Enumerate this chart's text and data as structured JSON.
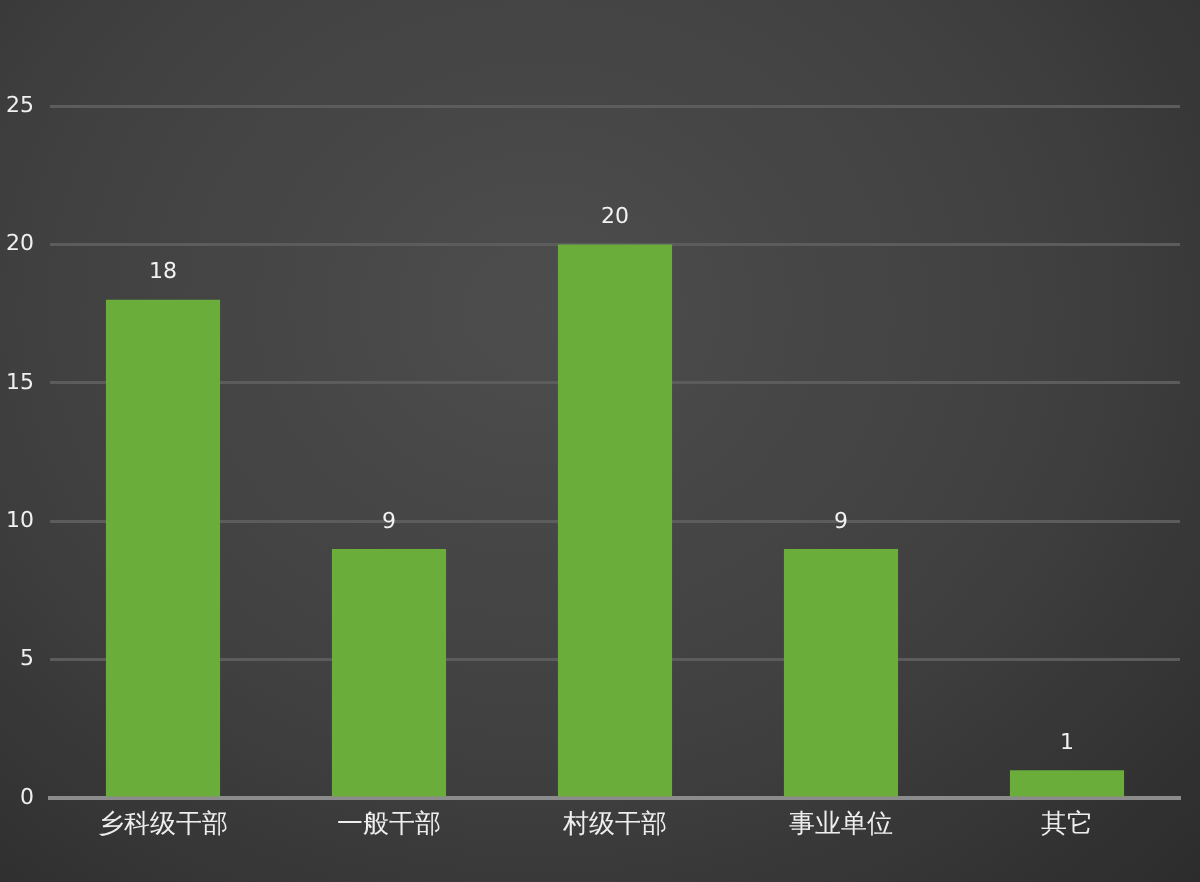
{
  "chart_data": {
    "type": "bar",
    "categories": [
      "乡科级干部",
      "一般干部",
      "村级干部",
      "事业单位",
      "其它"
    ],
    "values": [
      18,
      9,
      20,
      9,
      1
    ],
    "color": "#6aad3a",
    "ylim": [
      0,
      25
    ],
    "yticks": [
      0,
      5,
      10,
      15,
      20,
      25
    ],
    "grid": "y",
    "data_labels": true
  }
}
